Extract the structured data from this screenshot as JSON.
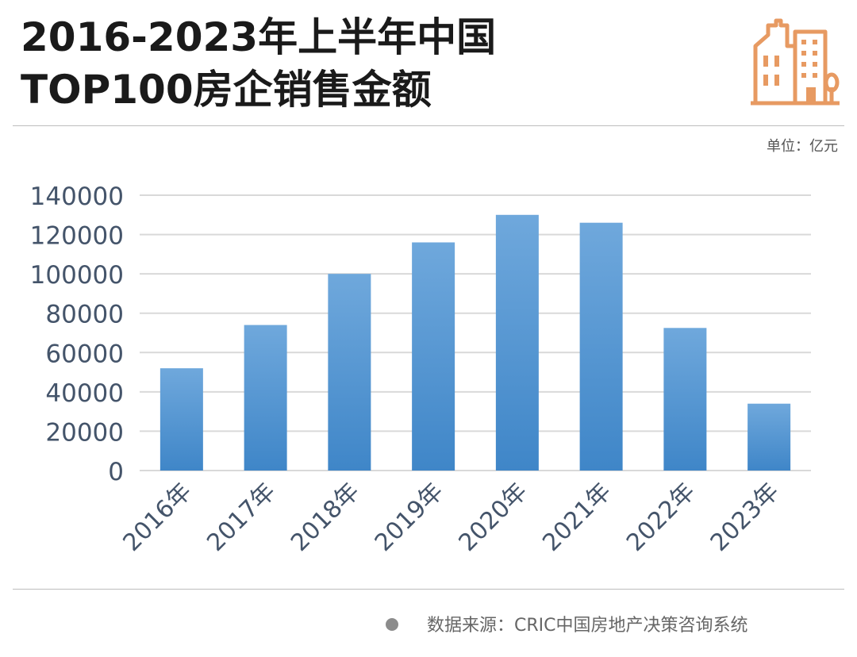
{
  "header": {
    "title_line1": "2016-2023年上半年中国",
    "title_line2": "TOP100房企销售金额",
    "logo_icon": "building-icon"
  },
  "unit_label": "单位：亿元",
  "source_text": "数据来源：CRIC中国房地产决策咨询系统",
  "colors": {
    "bar_top": "#6fa8dc",
    "bar_bottom": "#3f86c8",
    "axis_text": "#44546a",
    "grid": "#d9d9d9",
    "logo": "#e79a62"
  },
  "chart_data": {
    "type": "bar",
    "categories": [
      "2016年",
      "2017年",
      "2018年",
      "2019年",
      "2020年",
      "2021年",
      "2022年",
      "2023年"
    ],
    "values": [
      52000,
      74000,
      100000,
      116000,
      130000,
      126000,
      72500,
      34000
    ],
    "title": "2016-2023年上半年中国TOP100房企销售金额",
    "xlabel": "",
    "ylabel": "",
    "unit": "亿元",
    "ylim": [
      0,
      140000
    ],
    "yticks": [
      0,
      20000,
      40000,
      60000,
      80000,
      100000,
      120000,
      140000
    ],
    "grid": true,
    "legend": "none"
  }
}
